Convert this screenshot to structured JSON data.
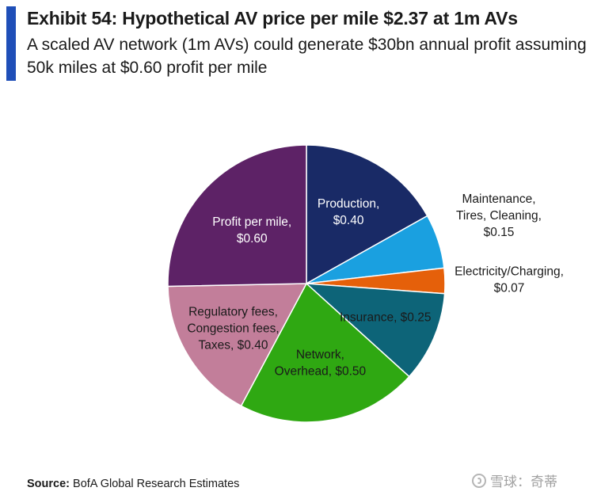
{
  "header": {
    "title": "Exhibit 54: Hypothetical AV price per mile $2.37 at 1m AVs",
    "subtitle": "A scaled AV network (1m AVs) could generate $30bn annual profit assuming 50k miles at $0.60 profit per mile"
  },
  "chart_data": {
    "type": "pie",
    "title": "",
    "start_angle_deg": 0,
    "direction": "clockwise",
    "slices": [
      {
        "label": "Production, $0.40",
        "label_lines": [
          "Production,",
          "$0.40"
        ],
        "value": 0.4,
        "color": "#192a66",
        "text_color": "#ffffff",
        "label_position": "inside"
      },
      {
        "label": "Maintenance, Tires, Cleaning, $0.15",
        "label_lines": [
          "Maintenance,",
          "Tires, Cleaning,",
          "$0.15"
        ],
        "value": 0.15,
        "color": "#1aa0e0",
        "text_color": "#1a1a1a",
        "label_position": "outside"
      },
      {
        "label": "Electricity/Charging, $0.07",
        "label_lines": [
          "Electricity/Charging,",
          "$0.07"
        ],
        "value": 0.07,
        "color": "#e5600a",
        "text_color": "#1a1a1a",
        "label_position": "outside"
      },
      {
        "label": "Insurance, $0.25",
        "label_lines": [
          "Insurance, $0.25"
        ],
        "value": 0.25,
        "color": "#0d6478",
        "text_color": "#1a1a1a",
        "label_position": "inside"
      },
      {
        "label": "Network, Overhead, $0.50",
        "label_lines": [
          "Network,",
          "Overhead, $0.50"
        ],
        "value": 0.5,
        "color": "#2fa812",
        "text_color": "#1a1a1a",
        "label_position": "inside"
      },
      {
        "label": "Regulatory fees, Congestion fees, Taxes, $0.40",
        "label_lines": [
          "Regulatory fees,",
          "Congestion fees,",
          "Taxes, $0.40"
        ],
        "value": 0.4,
        "color": "#c27e9a",
        "text_color": "#1a1a1a",
        "label_position": "inside"
      },
      {
        "label": "Profit per mile, $0.60",
        "label_lines": [
          "Profit per mile,",
          "$0.60"
        ],
        "value": 0.6,
        "color": "#5d2266",
        "text_color": "#ffffff",
        "label_position": "inside"
      }
    ]
  },
  "footer": {
    "source_label": "Source:",
    "source_text": "BofA Global Research Estimates",
    "watermark_text": "雪球：奇蒂"
  }
}
